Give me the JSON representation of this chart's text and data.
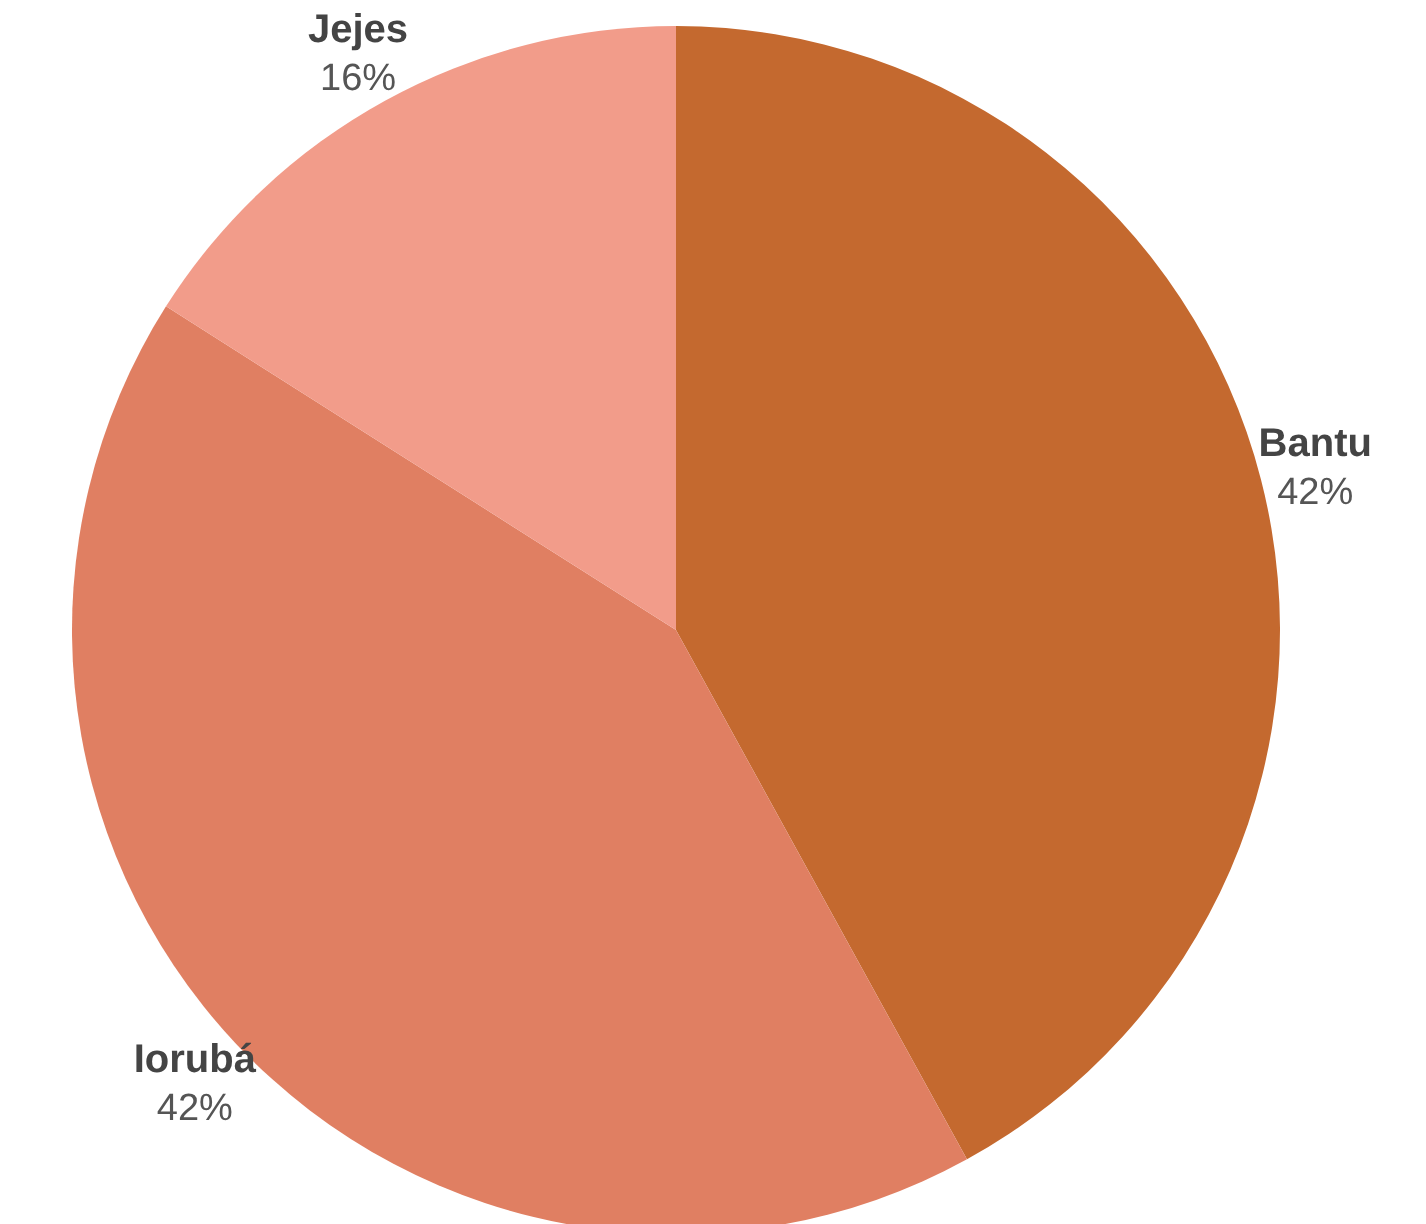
{
  "chart_data": {
    "type": "pie",
    "categories": [
      "Bantu",
      "Iorubá",
      "Jejes"
    ],
    "values": [
      42,
      42,
      16
    ],
    "colors": [
      "#c4692f",
      "#e07f62",
      "#f29c8a"
    ],
    "value_labels": [
      "42%",
      "42%",
      "16%"
    ]
  }
}
